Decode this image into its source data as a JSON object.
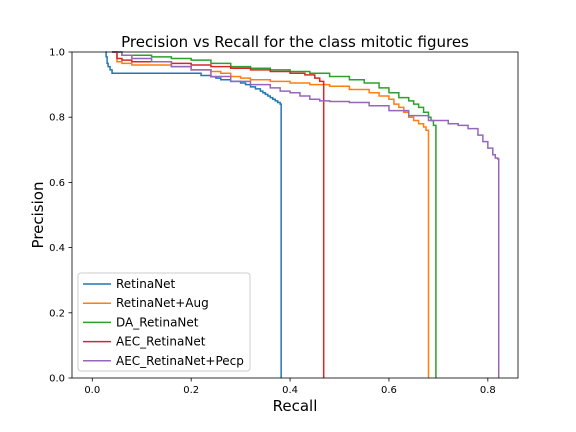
{
  "chart_data": {
    "type": "line",
    "title": "Precision vs Recall for the class mitotic figures",
    "xlabel": "Recall",
    "ylabel": "Precision",
    "xlim": [
      -0.041,
      0.861
    ],
    "ylim": [
      0.0,
      1.0
    ],
    "xticks": [
      0.0,
      0.2,
      0.4,
      0.6,
      0.8
    ],
    "xtick_labels": [
      "0.0",
      "0.2",
      "0.4",
      "0.6",
      "0.8"
    ],
    "yticks": [
      0.0,
      0.2,
      0.4,
      0.6,
      0.8,
      1.0
    ],
    "ytick_labels": [
      "0.0",
      "0.2",
      "0.4",
      "0.6",
      "0.8",
      "1.0"
    ],
    "grid": false,
    "legend_position": "lower-left",
    "series": [
      {
        "name": "RetinaNet",
        "color": "#1f77b4",
        "x": [
          0.027,
          0.028,
          0.03,
          0.032,
          0.036,
          0.04,
          0.08,
          0.12,
          0.16,
          0.2,
          0.22,
          0.24,
          0.25,
          0.26,
          0.28,
          0.3,
          0.31,
          0.32,
          0.33,
          0.34,
          0.345,
          0.35,
          0.355,
          0.36,
          0.365,
          0.37,
          0.375,
          0.38,
          0.382,
          0.382
        ],
        "y": [
          1.0,
          0.985,
          0.965,
          0.955,
          0.945,
          0.935,
          0.935,
          0.935,
          0.935,
          0.935,
          0.928,
          0.924,
          0.92,
          0.915,
          0.91,
          0.905,
          0.9,
          0.893,
          0.887,
          0.88,
          0.875,
          0.87,
          0.865,
          0.86,
          0.855,
          0.85,
          0.845,
          0.84,
          0.838,
          0.0
        ]
      },
      {
        "name": "RetinaNet+Aug",
        "color": "#ff7f0e",
        "x": [
          0.04,
          0.05,
          0.06,
          0.08,
          0.12,
          0.16,
          0.2,
          0.24,
          0.26,
          0.28,
          0.3,
          0.32,
          0.36,
          0.4,
          0.44,
          0.48,
          0.52,
          0.56,
          0.58,
          0.6,
          0.61,
          0.62,
          0.63,
          0.64,
          0.65,
          0.66,
          0.67,
          0.675,
          0.68,
          0.68
        ],
        "y": [
          1.0,
          0.97,
          0.965,
          0.96,
          0.96,
          0.955,
          0.945,
          0.94,
          0.935,
          0.925,
          0.92,
          0.915,
          0.91,
          0.905,
          0.9,
          0.895,
          0.885,
          0.875,
          0.865,
          0.855,
          0.84,
          0.83,
          0.815,
          0.8,
          0.79,
          0.78,
          0.77,
          0.76,
          0.752,
          0.0
        ]
      },
      {
        "name": "DA_RetinaNet",
        "color": "#2ca02c",
        "x": [
          0.04,
          0.06,
          0.08,
          0.12,
          0.16,
          0.2,
          0.24,
          0.28,
          0.32,
          0.36,
          0.4,
          0.44,
          0.48,
          0.52,
          0.55,
          0.58,
          0.6,
          0.62,
          0.64,
          0.65,
          0.66,
          0.67,
          0.68,
          0.685,
          0.69,
          0.695,
          0.695
        ],
        "y": [
          1.0,
          0.99,
          0.99,
          0.985,
          0.98,
          0.975,
          0.965,
          0.955,
          0.95,
          0.945,
          0.94,
          0.935,
          0.925,
          0.915,
          0.905,
          0.89,
          0.875,
          0.86,
          0.85,
          0.84,
          0.83,
          0.815,
          0.8,
          0.79,
          0.775,
          0.762,
          0.0
        ]
      },
      {
        "name": "AEC_RetinaNet",
        "color": "#d62728",
        "x": [
          0.04,
          0.05,
          0.06,
          0.08,
          0.12,
          0.16,
          0.2,
          0.24,
          0.28,
          0.32,
          0.36,
          0.4,
          0.43,
          0.45,
          0.46,
          0.468,
          0.468
        ],
        "y": [
          1.0,
          0.98,
          0.975,
          0.97,
          0.97,
          0.965,
          0.96,
          0.955,
          0.95,
          0.945,
          0.94,
          0.935,
          0.93,
          0.92,
          0.91,
          0.9,
          0.0
        ]
      },
      {
        "name": "AEC_RetinaNet+Pecp",
        "color": "#9467bd",
        "x": [
          0.04,
          0.06,
          0.08,
          0.12,
          0.16,
          0.2,
          0.24,
          0.28,
          0.32,
          0.36,
          0.38,
          0.4,
          0.42,
          0.44,
          0.46,
          0.48,
          0.52,
          0.56,
          0.6,
          0.64,
          0.68,
          0.72,
          0.74,
          0.76,
          0.78,
          0.79,
          0.8,
          0.81,
          0.815,
          0.82,
          0.822,
          0.822
        ],
        "y": [
          1.0,
          0.99,
          0.98,
          0.97,
          0.955,
          0.945,
          0.925,
          0.91,
          0.9,
          0.89,
          0.88,
          0.875,
          0.865,
          0.855,
          0.85,
          0.848,
          0.845,
          0.835,
          0.82,
          0.805,
          0.79,
          0.78,
          0.775,
          0.765,
          0.745,
          0.725,
          0.705,
          0.685,
          0.675,
          0.672,
          0.665,
          0.0
        ]
      }
    ]
  }
}
